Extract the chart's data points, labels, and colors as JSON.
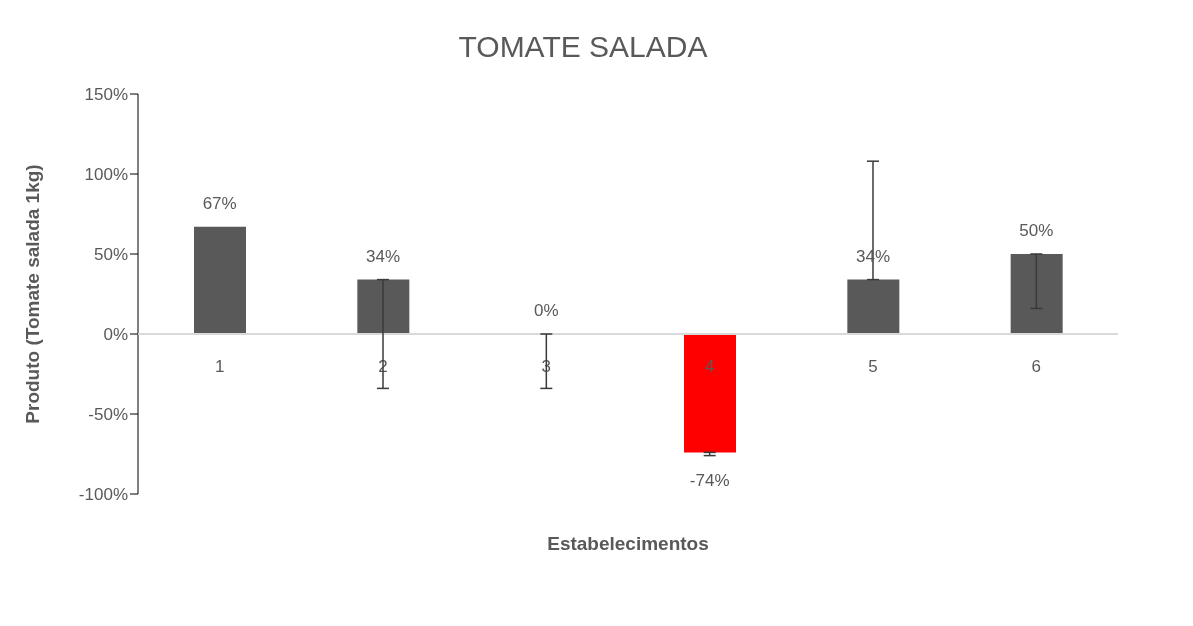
{
  "chart_data": {
    "type": "bar",
    "title": "TOMATE SALADA",
    "xlabel": "Estabelecimentos",
    "ylabel": "Produto (Tomate salada 1kg)",
    "categories": [
      "1",
      "2",
      "3",
      "4",
      "5",
      "6"
    ],
    "values": [
      67,
      34,
      0,
      -74,
      34,
      50
    ],
    "colors": [
      "#595959",
      "#595959",
      "#595959",
      "#ff0000",
      "#595959",
      "#595959"
    ],
    "value_labels": [
      "67%",
      "34%",
      "0%",
      "-74%",
      "34%",
      "50%"
    ],
    "errors": [
      null,
      [
        -34,
        34
      ],
      [
        -34,
        0
      ],
      [
        -76,
        -74
      ],
      [
        34,
        108
      ],
      [
        16,
        50
      ]
    ],
    "ylim": [
      -100,
      150
    ],
    "yticks": [
      {
        "value": -100,
        "label": "-100%"
      },
      {
        "value": -50,
        "label": "-50%"
      },
      {
        "value": 0,
        "label": "0%"
      },
      {
        "value": 50,
        "label": "50%"
      },
      {
        "value": 100,
        "label": "100%"
      },
      {
        "value": 150,
        "label": "150%"
      }
    ],
    "grid": false,
    "legend": false
  }
}
